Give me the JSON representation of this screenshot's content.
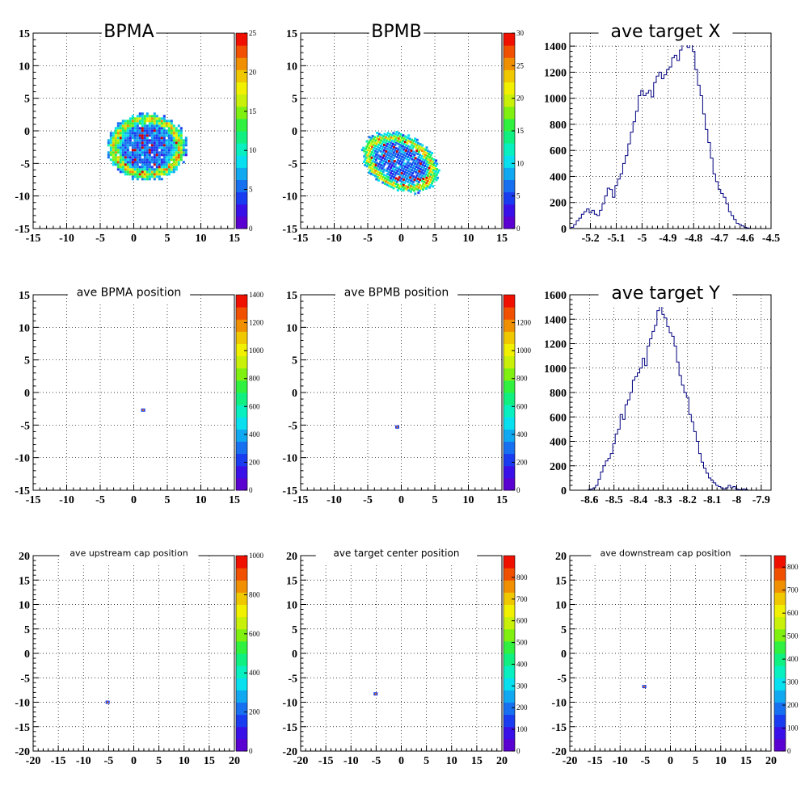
{
  "chart_data": [
    {
      "type": "heatmap",
      "title": "BPMA",
      "xlim": [
        -15,
        15
      ],
      "ylim": [
        -15,
        15
      ],
      "xticks": [
        "-15",
        "-10",
        "-5",
        "0",
        "5",
        "10",
        "15"
      ],
      "yticks": [
        "-15",
        "-10",
        "-5",
        "0",
        "5",
        "10",
        "15"
      ],
      "zlim": [
        0,
        25
      ],
      "zticks": [
        "0",
        "5",
        "10",
        "15",
        "20",
        "25"
      ],
      "grid": true,
      "blobs": [
        {
          "shape": "ellipse",
          "cx": 1.8,
          "cy": -2.3,
          "rx": 6.1,
          "ry": 5.3,
          "angle": 0,
          "density": "ring"
        }
      ]
    },
    {
      "type": "heatmap",
      "title": "BPMB",
      "xlim": [
        -15,
        15
      ],
      "ylim": [
        -15,
        15
      ],
      "xticks": [
        "-15",
        "-10",
        "-5",
        "0",
        "5",
        "10",
        "15"
      ],
      "yticks": [
        "-15",
        "-10",
        "-5",
        "0",
        "5",
        "10",
        "15"
      ],
      "zlim": [
        0,
        30
      ],
      "zticks": [
        "0",
        "5",
        "10",
        "15",
        "20",
        "25",
        "30"
      ],
      "grid": true,
      "blobs": [
        {
          "shape": "ellipse",
          "cx": -0.3,
          "cy": -4.7,
          "rx": 6.3,
          "ry": 4.3,
          "angle": -28,
          "density": "ring"
        }
      ]
    },
    {
      "type": "step",
      "title": "ave target X",
      "xlim": [
        -5.28,
        -4.5
      ],
      "ylim": [
        0,
        1500
      ],
      "xticks": [
        "-5.2",
        "-5.1",
        "-5",
        "-4.9",
        "-4.8",
        "-4.7",
        "-4.6",
        "-4.5"
      ],
      "yticks": [
        "0",
        "200",
        "400",
        "600",
        "800",
        "1000",
        "1200",
        "1400"
      ],
      "grid": true,
      "x": [
        -5.27,
        -5.26,
        -5.25,
        -5.24,
        -5.23,
        -5.22,
        -5.21,
        -5.2,
        -5.19,
        -5.18,
        -5.17,
        -5.16,
        -5.15,
        -5.14,
        -5.13,
        -5.12,
        -5.11,
        -5.1,
        -5.09,
        -5.08,
        -5.07,
        -5.06,
        -5.05,
        -5.04,
        -5.03,
        -5.02,
        -5.01,
        -5.0,
        -4.99,
        -4.98,
        -4.97,
        -4.96,
        -4.95,
        -4.94,
        -4.93,
        -4.92,
        -4.91,
        -4.9,
        -4.89,
        -4.88,
        -4.87,
        -4.86,
        -4.85,
        -4.84,
        -4.83,
        -4.82,
        -4.81,
        -4.8,
        -4.79,
        -4.78,
        -4.77,
        -4.76,
        -4.75,
        -4.74,
        -4.73,
        -4.72,
        -4.71,
        -4.7,
        -4.69,
        -4.68,
        -4.67,
        -4.66,
        -4.65,
        -4.64,
        -4.63,
        -4.62,
        -4.61,
        -4.6,
        -4.59,
        -4.58
      ],
      "values": [
        10,
        30,
        60,
        80,
        110,
        130,
        150,
        120,
        140,
        110,
        100,
        140,
        190,
        250,
        310,
        300,
        240,
        330,
        380,
        420,
        500,
        560,
        650,
        740,
        820,
        900,
        1020,
        1060,
        1020,
        1040,
        1060,
        1010,
        1120,
        1170,
        1200,
        1150,
        1180,
        1220,
        1240,
        1310,
        1330,
        1290,
        1370,
        1410,
        1460,
        1390,
        1440,
        1360,
        1220,
        1100,
        1020,
        880,
        760,
        660,
        540,
        420,
        360,
        300,
        270,
        240,
        190,
        130,
        100,
        70,
        40,
        30,
        20,
        10,
        5,
        0
      ]
    },
    {
      "type": "heatmap",
      "title": "ave BPMA position",
      "xlim": [
        -15,
        15
      ],
      "ylim": [
        -15,
        15
      ],
      "xticks": [
        "-15",
        "-10",
        "-5",
        "0",
        "5",
        "10",
        "15"
      ],
      "yticks": [
        "-15",
        "-10",
        "-5",
        "0",
        "5",
        "10",
        "15"
      ],
      "zlim": [
        0,
        1400
      ],
      "zticks": [
        "0",
        "200",
        "400",
        "600",
        "800",
        "1000",
        "1200",
        "1400"
      ],
      "grid": true,
      "blobs": [
        {
          "shape": "dot",
          "cx": 1.4,
          "cy": -2.7
        }
      ]
    },
    {
      "type": "heatmap",
      "title": "ave BPMB position",
      "xlim": [
        -15,
        15
      ],
      "ylim": [
        -15,
        15
      ],
      "xticks": [
        "-15",
        "-10",
        "-5",
        "0",
        "5",
        "10",
        "15"
      ],
      "yticks": [
        "-15",
        "-10",
        "-5",
        "0",
        "5",
        "10",
        "15"
      ],
      "zlim": [
        0,
        1400
      ],
      "zticks": [
        "0",
        "200",
        "400",
        "600",
        "800",
        "1000",
        "1200"
      ],
      "grid": true,
      "blobs": [
        {
          "shape": "dot",
          "cx": -0.6,
          "cy": -5.3
        }
      ]
    },
    {
      "type": "step",
      "title": "ave target Y",
      "xlim": [
        -8.68,
        -7.86
      ],
      "ylim": [
        0,
        1600
      ],
      "xticks": [
        "-8.6",
        "-8.5",
        "-8.4",
        "-8.3",
        "-8.2",
        "-8.1",
        "-8",
        "-7.9"
      ],
      "yticks": [
        "0",
        "200",
        "400",
        "600",
        "800",
        "1000",
        "1200",
        "1400",
        "1600"
      ],
      "grid": true,
      "x": [
        -8.6,
        -8.59,
        -8.58,
        -8.57,
        -8.56,
        -8.55,
        -8.54,
        -8.53,
        -8.52,
        -8.51,
        -8.5,
        -8.49,
        -8.48,
        -8.47,
        -8.46,
        -8.45,
        -8.44,
        -8.43,
        -8.42,
        -8.41,
        -8.4,
        -8.39,
        -8.38,
        -8.37,
        -8.36,
        -8.35,
        -8.34,
        -8.33,
        -8.32,
        -8.31,
        -8.3,
        -8.29,
        -8.28,
        -8.27,
        -8.26,
        -8.25,
        -8.24,
        -8.23,
        -8.22,
        -8.21,
        -8.2,
        -8.19,
        -8.18,
        -8.17,
        -8.16,
        -8.15,
        -8.14,
        -8.13,
        -8.12,
        -8.11,
        -8.1,
        -8.09,
        -8.08,
        -8.07,
        -8.06,
        -8.05,
        -8.04,
        -8.03,
        -8.02,
        -8.01,
        -8.0,
        -7.99,
        -7.98,
        -7.97,
        -7.96,
        -7.95,
        -7.94,
        -7.93,
        -7.92
      ],
      "values": [
        5,
        10,
        20,
        40,
        90,
        150,
        200,
        240,
        260,
        300,
        380,
        460,
        500,
        620,
        580,
        700,
        740,
        800,
        900,
        930,
        960,
        1000,
        1080,
        1020,
        1180,
        1240,
        1300,
        1350,
        1470,
        1520,
        1440,
        1410,
        1340,
        1290,
        1260,
        1180,
        1050,
        940,
        860,
        800,
        760,
        620,
        560,
        480,
        400,
        300,
        230,
        180,
        140,
        100,
        80,
        60,
        40,
        30,
        20,
        10,
        20,
        40,
        20,
        30,
        10,
        5,
        5,
        10,
        5,
        0,
        0,
        0,
        0
      ]
    },
    {
      "type": "heatmap",
      "title": "ave upstream cap position",
      "xlim": [
        -20,
        20
      ],
      "ylim": [
        -20,
        20
      ],
      "xticks": [
        "-20",
        "-15",
        "-10",
        "-5",
        "0",
        "5",
        "10",
        "15",
        "20"
      ],
      "yticks": [
        "-20",
        "-15",
        "-10",
        "-5",
        "0",
        "5",
        "10",
        "15",
        "20"
      ],
      "zlim": [
        0,
        1000
      ],
      "zticks": [
        "0",
        "200",
        "400",
        "600",
        "800",
        "1000"
      ],
      "grid": true,
      "blobs": [
        {
          "shape": "dot",
          "cx": -5.2,
          "cy": -10.0
        }
      ]
    },
    {
      "type": "heatmap",
      "title": "ave target center  position",
      "xlim": [
        -20,
        20
      ],
      "ylim": [
        -20,
        20
      ],
      "xticks": [
        "-20",
        "-15",
        "-10",
        "-5",
        "0",
        "5",
        "10",
        "15",
        "20"
      ],
      "yticks": [
        "-20",
        "-15",
        "-10",
        "-5",
        "0",
        "5",
        "10",
        "15",
        "20"
      ],
      "zlim": [
        0,
        900
      ],
      "zticks": [
        "0",
        "100",
        "200",
        "300",
        "400",
        "500",
        "600",
        "700",
        "800"
      ],
      "grid": true,
      "blobs": [
        {
          "shape": "dot",
          "cx": -5.1,
          "cy": -8.3
        }
      ]
    },
    {
      "type": "heatmap",
      "title": "ave downstream cap position",
      "xlim": [
        -20,
        20
      ],
      "ylim": [
        -20,
        20
      ],
      "xticks": [
        "-20",
        "-15",
        "-10",
        "-5",
        "0",
        "5",
        "10",
        "15",
        "20"
      ],
      "yticks": [
        "-20",
        "-15",
        "-10",
        "-5",
        "0",
        "5",
        "10",
        "15",
        "20"
      ],
      "zlim": [
        0,
        850
      ],
      "zticks": [
        "0",
        "100",
        "200",
        "300",
        "400",
        "500",
        "600",
        "700",
        "800"
      ],
      "grid": true,
      "blobs": [
        {
          "shape": "dot",
          "cx": -5.2,
          "cy": -6.8
        }
      ]
    }
  ],
  "colors": {
    "palette": [
      "#5a00d0",
      "#3a10e8",
      "#1a3cf0",
      "#1670f0",
      "#10a8f0",
      "#08e0f0",
      "#08f0c0",
      "#10f080",
      "#30f040",
      "#80f010",
      "#c8f008",
      "#f0f000",
      "#f0c800",
      "#f09000",
      "#f05000",
      "#f01000"
    ],
    "hist_line": "#000080"
  }
}
